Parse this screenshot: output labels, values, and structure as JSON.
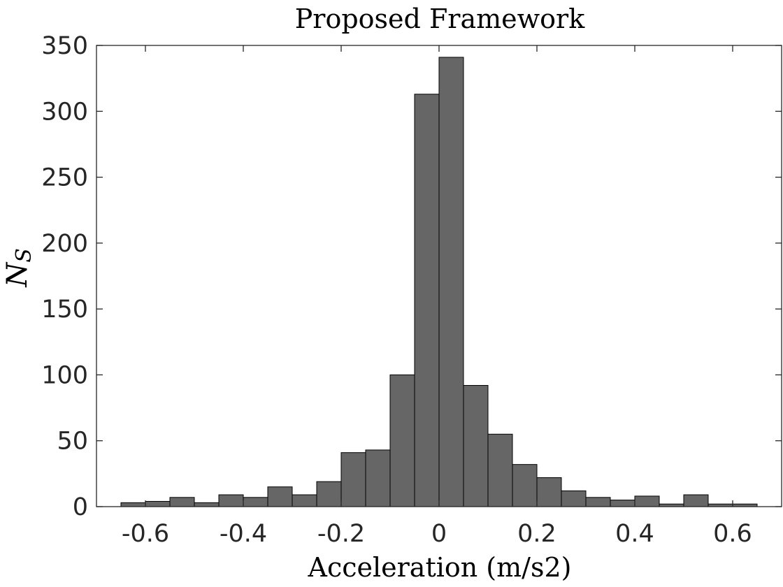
{
  "chart_data": {
    "type": "bar",
    "title": "Proposed Framework",
    "xlabel": "Acceleration (m/s2)",
    "ylabel": "N",
    "ylabel_subscript": "S",
    "xlim": [
      -0.7,
      0.7
    ],
    "ylim": [
      0,
      350
    ],
    "x_ticks": [
      -0.6,
      -0.4,
      -0.2,
      0,
      0.2,
      0.4,
      0.6
    ],
    "x_tick_labels": [
      "-0.6",
      "-0.4",
      "-0.2",
      "0",
      "0.2",
      "0.4",
      "0.6"
    ],
    "y_ticks": [
      0,
      50,
      100,
      150,
      200,
      250,
      300,
      350
    ],
    "y_tick_labels": [
      "0",
      "50",
      "100",
      "150",
      "200",
      "250",
      "300",
      "350"
    ],
    "bin_edges": [
      -0.65,
      -0.6,
      -0.55,
      -0.5,
      -0.45,
      -0.4,
      -0.35,
      -0.3,
      -0.25,
      -0.2,
      -0.15,
      -0.1,
      -0.05,
      0,
      0.05,
      0.1,
      0.15,
      0.2,
      0.25,
      0.3,
      0.35,
      0.4,
      0.45,
      0.5,
      0.55,
      0.6,
      0.65
    ],
    "values": [
      3,
      4,
      7,
      3,
      9,
      7,
      15,
      9,
      19,
      41,
      43,
      100,
      313,
      341,
      92,
      55,
      32,
      22,
      12,
      7,
      5,
      8,
      2,
      9,
      2,
      2
    ],
    "grid": false,
    "bar_color": "#666666",
    "edge_color": "#000000"
  }
}
